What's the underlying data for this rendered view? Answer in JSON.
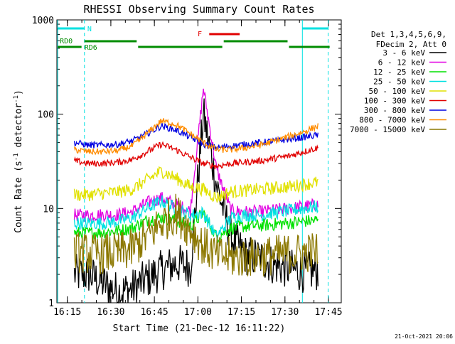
{
  "chart_data": {
    "type": "line",
    "title": "RHESSI Observing Summary Count Rates",
    "xlabel": "Start Time (21-Dec-12 16:11:22)",
    "ylabel": "Count Rate (s",
    "ylabel_sup": "-1",
    "ylabel_tail": " detector",
    "ylabel_close": ")",
    "y_scale": "log",
    "ylim": [
      1,
      1000
    ],
    "xlim_minutes": [
      0,
      98
    ],
    "x_ticks": [
      {
        "label": "16:15",
        "min": 3.6
      },
      {
        "label": "16:30",
        "min": 18.6
      },
      {
        "label": "16:45",
        "min": 33.6
      },
      {
        "label": "17:00",
        "min": 48.6
      },
      {
        "label": "17:15",
        "min": 63.6
      },
      {
        "label": "17:30",
        "min": 78.6
      },
      {
        "label": "17:45",
        "min": 93.6
      }
    ],
    "y_ticks": [
      {
        "label": "1000",
        "value": 1000
      },
      {
        "label": "100",
        "value": 100
      },
      {
        "label": "10",
        "value": 10
      },
      {
        "label": "1",
        "value": 1
      }
    ],
    "legend_header": [
      "Det 1,3,4,5,6,9,",
      "FDecim 2, Att 0"
    ],
    "legend_position": "right",
    "series": [
      {
        "name": "3 - 6 keV",
        "color": "#000000",
        "values": [
          2,
          2,
          1.6,
          1.3,
          1.4,
          1.8,
          2.2,
          2.6,
          2.4,
          100,
          18,
          5,
          3.2,
          3,
          2.5,
          2.3,
          2.1,
          2.2
        ]
      },
      {
        "name": "6 - 12 keV",
        "color": "#e100e1",
        "values": [
          8.5,
          8.5,
          8.6,
          8.6,
          9.2,
          11.5,
          13,
          11,
          9.5,
          190,
          26,
          9.5,
          9.2,
          9.2,
          9.6,
          10,
          10.5,
          11
        ]
      },
      {
        "name": "12 - 25 keV",
        "color": "#00e100",
        "values": [
          5.5,
          5.5,
          5.6,
          5.8,
          6.2,
          7.5,
          8,
          7.5,
          6.5,
          9,
          5,
          6.2,
          6.5,
          6.6,
          6.8,
          7,
          7.3,
          7.5
        ]
      },
      {
        "name": "25 - 50 keV",
        "color": "#00e1e1",
        "values": [
          7,
          7,
          7,
          7.3,
          8,
          10,
          12,
          10,
          8.5,
          9,
          5,
          8,
          8.5,
          8.5,
          9,
          9.5,
          10,
          10.5
        ]
      },
      {
        "name": "50 - 100 keV",
        "color": "#e1e100",
        "values": [
          14,
          14,
          14.5,
          15,
          16,
          20,
          25,
          21,
          17,
          16,
          13,
          15,
          15.5,
          16,
          16.5,
          17,
          18,
          19
        ]
      },
      {
        "name": "100 - 300 keV",
        "color": "#e10000",
        "values": [
          32,
          30,
          30,
          31,
          33,
          40,
          48,
          42,
          35,
          30,
          28,
          30,
          31,
          32,
          34,
          36,
          40,
          44
        ]
      },
      {
        "name": "300 - 800 keV",
        "color": "#0000e1",
        "values": [
          50,
          47,
          47,
          48,
          52,
          62,
          75,
          68,
          57,
          48,
          44,
          46,
          48,
          50,
          52,
          54,
          57,
          60
        ]
      },
      {
        "name": "800 - 7000 keV",
        "color": "#ff8c00",
        "values": [
          42,
          40,
          40,
          41,
          46,
          62,
          85,
          78,
          62,
          50,
          42,
          42,
          44,
          47,
          52,
          58,
          65,
          75
        ]
      },
      {
        "name": "7000 - 15000 keV",
        "color": "#8c7800",
        "values": [
          3.5,
          3.3,
          3.3,
          3.4,
          3.7,
          5,
          7,
          9,
          6,
          4,
          3.2,
          3,
          3,
          3.1,
          3.2,
          3.3,
          3.4,
          3.5
        ]
      }
    ],
    "series_x_minutes": [
      6,
      11,
      16,
      21,
      26,
      31,
      36,
      41,
      46,
      50.5,
      55,
      60,
      65,
      70,
      75,
      80,
      85,
      90
    ],
    "annotations": {
      "N": "N",
      "RD0": "RD0",
      "RD6": "RD6",
      "F": "F"
    },
    "annotation_colors": {
      "N": "#00e1e1",
      "RD": "#008c00",
      "F": "#e10000"
    },
    "grid": false
  },
  "footer_date": "21-Oct-2021 20:06"
}
